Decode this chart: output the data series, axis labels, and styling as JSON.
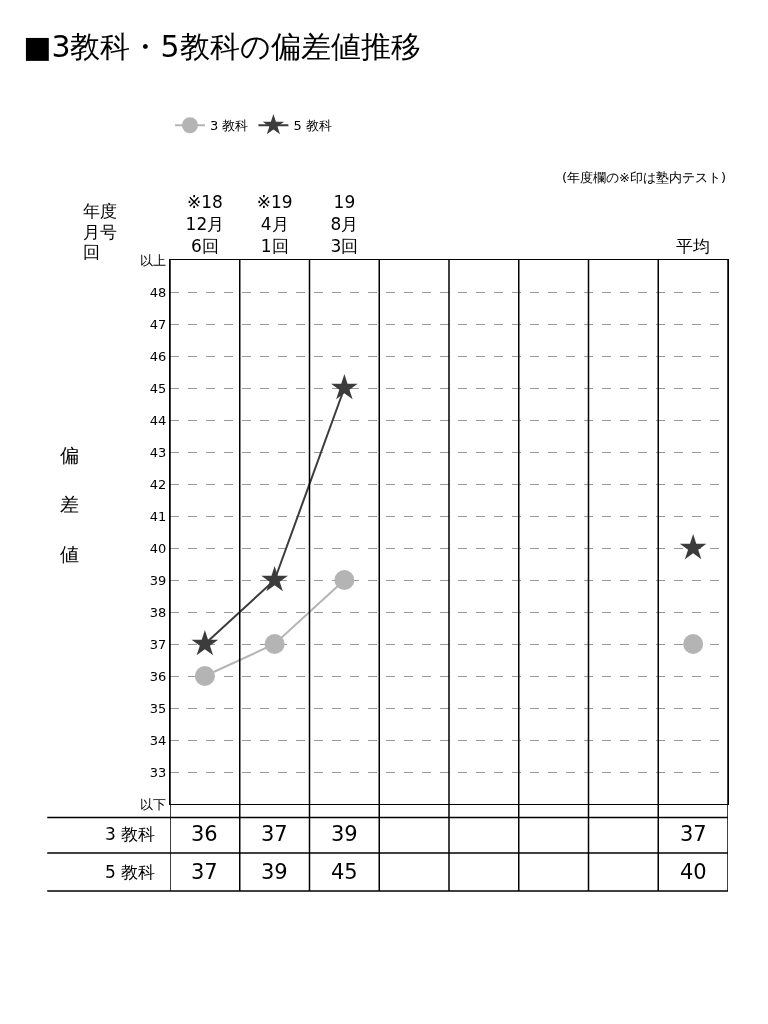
{
  "chart_data": {
    "type": "line",
    "title": "■3教科・5教科の偏差値推移",
    "ylabel": "偏差値",
    "categories": [
      "※18\n12月\n6回",
      "※19\n4月\n1回",
      "19\n8月\n3回",
      null,
      null,
      null,
      null,
      "平均"
    ],
    "series": [
      {
        "name": "3 教科",
        "color": "#b4b4b4",
        "marker": "circle",
        "values": [
          36,
          37,
          39,
          null,
          null,
          null,
          null,
          37
        ]
      },
      {
        "name": "5 教科",
        "color": "#3c3c3c",
        "marker": "star",
        "values": [
          37,
          39,
          45,
          null,
          null,
          null,
          null,
          40
        ]
      }
    ],
    "ylim": [
      32,
      49
    ],
    "yticks": [
      {
        "value": 32,
        "label": "以下"
      },
      33,
      34,
      35,
      36,
      37,
      38,
      39,
      40,
      41,
      42,
      43,
      44,
      45,
      46,
      47,
      48,
      {
        "value": 49,
        "label": "以上"
      }
    ],
    "grid": true,
    "legend": "top left",
    "data_labels": true,
    "line_style": "solid",
    "annotations": [
      "年度",
      "月号",
      "回",
      "(年度欄の※印は塾内テスト)"
    ]
  }
}
